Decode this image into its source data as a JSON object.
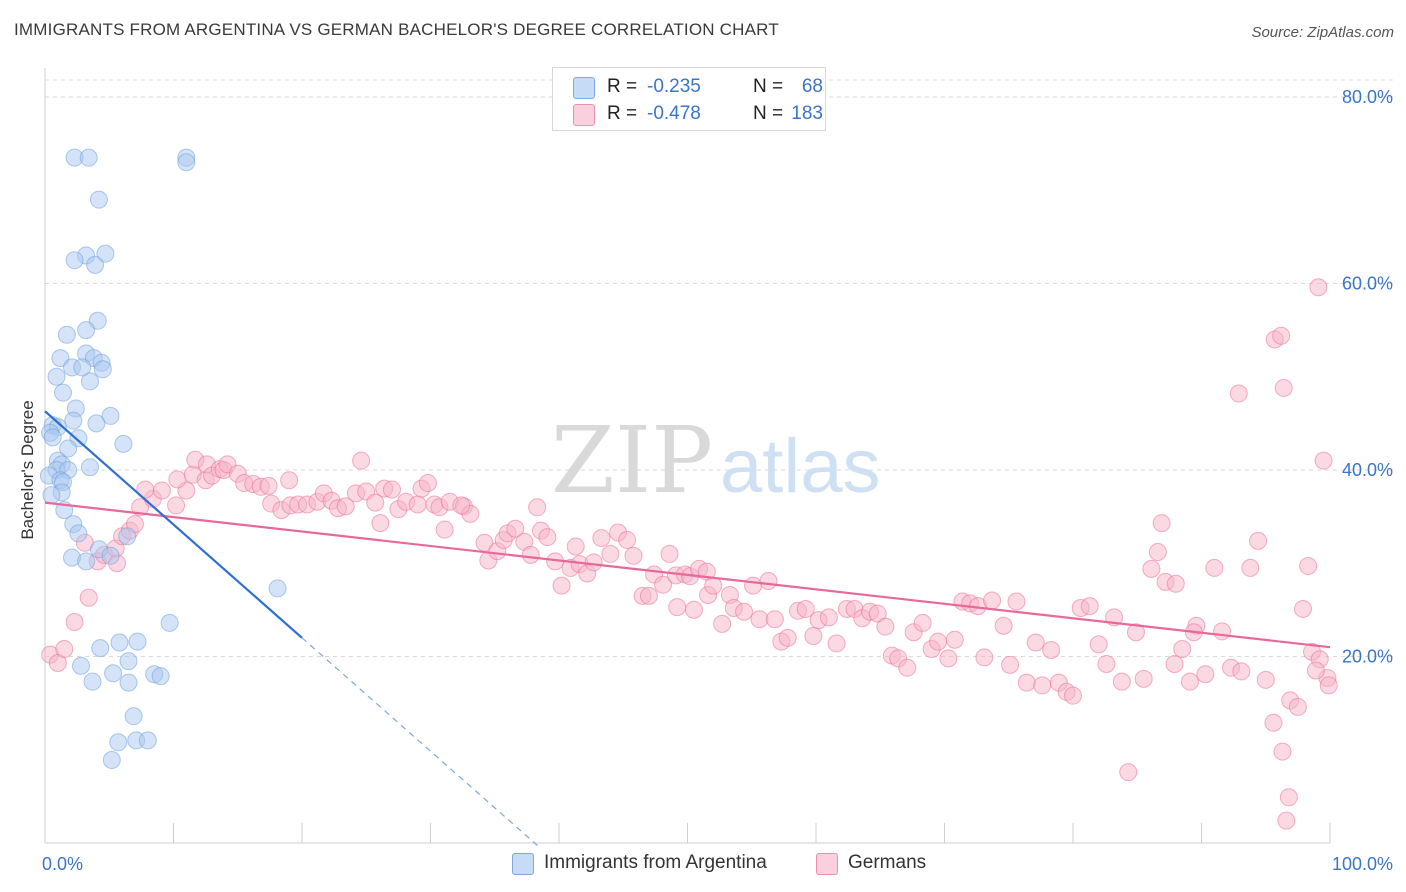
{
  "title": "IMMIGRANTS FROM ARGENTINA VS GERMAN BACHELOR'S DEGREE CORRELATION CHART",
  "source": "Source: ZipAtlas.com",
  "watermark": {
    "zip": "ZIP",
    "atlas": "atlas"
  },
  "legend": {
    "items": [
      {
        "r_label": "R =",
        "r_value": "-0.235",
        "n_label": "N =",
        "n_value": "68",
        "color": "#a9c8ef"
      },
      {
        "r_label": "R =",
        "r_value": "-0.478",
        "n_label": "N =",
        "n_value": "183",
        "color": "#f6b3c8"
      }
    ]
  },
  "bottom_legend": [
    {
      "label": "Immigrants from Argentina",
      "color": "#a9c8ef"
    },
    {
      "label": "Germans",
      "color": "#f6b3c8"
    }
  ],
  "chart_data": {
    "type": "scatter",
    "title": "IMMIGRANTS FROM ARGENTINA VS GERMAN BACHELOR'S DEGREE CORRELATION CHART",
    "xlabel": "",
    "ylabel": "Bachelor's Degree",
    "xlim": [
      0,
      100
    ],
    "ylim": [
      0,
      83
    ],
    "x_tick_labels": [
      "0.0%",
      "100.0%"
    ],
    "y_ticks": [
      20,
      40,
      60,
      80
    ],
    "y_tick_labels": [
      "20.0%",
      "40.0%",
      "60.0%",
      "80.0%"
    ],
    "grid": true,
    "legend_position": "top-center",
    "series": [
      {
        "name": "Immigrants from Argentina",
        "color": "#6fa0de",
        "fill": "#a9c8ef",
        "trend": {
          "x0": 0,
          "y0": 46.3,
          "x1": 20,
          "y1": 22.0,
          "dashed_to_x": 38.5
        },
        "points": [
          [
            2.3,
            73.5
          ],
          [
            3.4,
            73.5
          ],
          [
            11,
            73.5
          ],
          [
            11,
            73
          ],
          [
            4.2,
            69
          ],
          [
            3.2,
            63
          ],
          [
            4.7,
            63.2
          ],
          [
            2.3,
            62.5
          ],
          [
            3.9,
            62
          ],
          [
            4.1,
            56
          ],
          [
            3.2,
            55
          ],
          [
            1.7,
            54.5
          ],
          [
            3.2,
            52.5
          ],
          [
            3.8,
            52
          ],
          [
            1.2,
            52
          ],
          [
            4.4,
            51.5
          ],
          [
            2.1,
            51
          ],
          [
            2.9,
            51
          ],
          [
            4.5,
            50.8
          ],
          [
            0.9,
            50
          ],
          [
            3.5,
            49.5
          ],
          [
            1.4,
            48.3
          ],
          [
            2.4,
            46.6
          ],
          [
            5.1,
            45.8
          ],
          [
            2.2,
            45.3
          ],
          [
            4.0,
            45.0
          ],
          [
            0.6,
            44.8
          ],
          [
            1.0,
            44.6
          ],
          [
            0.4,
            44.0
          ],
          [
            0.6,
            43.5
          ],
          [
            2.6,
            43.4
          ],
          [
            6.1,
            42.8
          ],
          [
            1.8,
            42.3
          ],
          [
            1.0,
            41.0
          ],
          [
            1.3,
            40.6
          ],
          [
            3.5,
            40.3
          ],
          [
            0.9,
            40.0
          ],
          [
            1.8,
            40.0
          ],
          [
            0.3,
            39.4
          ],
          [
            1.2,
            38.9
          ],
          [
            1.4,
            38.7
          ],
          [
            1.3,
            37.6
          ],
          [
            0.5,
            37.3
          ],
          [
            1.5,
            35.7
          ],
          [
            2.2,
            34.2
          ],
          [
            2.6,
            33.2
          ],
          [
            6.4,
            32.9
          ],
          [
            4.2,
            31.5
          ],
          [
            5.1,
            30.8
          ],
          [
            2.1,
            30.6
          ],
          [
            3.2,
            30.2
          ],
          [
            18.1,
            27.3
          ],
          [
            9.7,
            23.6
          ],
          [
            7.2,
            21.6
          ],
          [
            5.8,
            21.5
          ],
          [
            4.3,
            20.9
          ],
          [
            8.5,
            18.1
          ],
          [
            9.0,
            17.9
          ],
          [
            5.3,
            18.2
          ],
          [
            3.7,
            17.3
          ],
          [
            6.5,
            17.2
          ],
          [
            6.9,
            13.6
          ],
          [
            7.1,
            11.0
          ],
          [
            5.7,
            10.8
          ],
          [
            8.0,
            11.0
          ],
          [
            5.2,
            8.9
          ],
          [
            6.5,
            19.5
          ],
          [
            2.8,
            19.0
          ]
        ]
      },
      {
        "name": "Germans",
        "color": "#ee6f98",
        "fill": "#f6b3c8",
        "trend": {
          "x0": 0,
          "y0": 36.5,
          "x1": 100,
          "y1": 21.0
        },
        "points": [
          [
            0.4,
            20.2
          ],
          [
            1.0,
            19.3
          ],
          [
            1.5,
            20.8
          ],
          [
            2.3,
            23.7
          ],
          [
            3.4,
            26.3
          ],
          [
            4.1,
            30.2
          ],
          [
            5.6,
            30.0
          ],
          [
            4.6,
            30.9
          ],
          [
            5.5,
            31.6
          ],
          [
            3.1,
            32.2
          ],
          [
            6.0,
            32.9
          ],
          [
            6.6,
            33.5
          ],
          [
            7.0,
            34.2
          ],
          [
            7.4,
            36.0
          ],
          [
            8.4,
            36.9
          ],
          [
            7.8,
            37.9
          ],
          [
            9.1,
            37.8
          ],
          [
            10.2,
            36.2
          ],
          [
            11.0,
            37.8
          ],
          [
            10.3,
            39.0
          ],
          [
            11.5,
            39.5
          ],
          [
            11.7,
            41.1
          ],
          [
            12.5,
            38.9
          ],
          [
            12.6,
            40.6
          ],
          [
            13.0,
            39.4
          ],
          [
            13.6,
            40.1
          ],
          [
            13.9,
            40.0
          ],
          [
            14.2,
            40.6
          ],
          [
            15.0,
            39.6
          ],
          [
            15.5,
            38.6
          ],
          [
            16.2,
            38.5
          ],
          [
            16.8,
            38.2
          ],
          [
            17.4,
            38.3
          ],
          [
            17.6,
            36.4
          ],
          [
            18.4,
            35.7
          ],
          [
            19.0,
            38.9
          ],
          [
            19.1,
            36.2
          ],
          [
            19.7,
            36.3
          ],
          [
            20.4,
            36.3
          ],
          [
            21.2,
            36.6
          ],
          [
            21.7,
            37.5
          ],
          [
            22.3,
            36.7
          ],
          [
            22.8,
            35.9
          ],
          [
            23.4,
            36.1
          ],
          [
            24.2,
            37.5
          ],
          [
            24.6,
            41.0
          ],
          [
            25.0,
            37.7
          ],
          [
            25.7,
            36.5
          ],
          [
            26.4,
            38.0
          ],
          [
            27.0,
            37.9
          ],
          [
            26.1,
            34.3
          ],
          [
            27.5,
            35.8
          ],
          [
            28.1,
            36.6
          ],
          [
            29.0,
            36.3
          ],
          [
            29.3,
            38.0
          ],
          [
            29.8,
            38.6
          ],
          [
            30.3,
            36.3
          ],
          [
            30.7,
            36.0
          ],
          [
            31.1,
            33.6
          ],
          [
            31.5,
            36.6
          ],
          [
            32.6,
            36.1
          ],
          [
            33.1,
            35.3
          ],
          [
            32.4,
            36.2
          ],
          [
            34.2,
            32.2
          ],
          [
            34.5,
            30.3
          ],
          [
            35.2,
            31.3
          ],
          [
            35.7,
            32.5
          ],
          [
            36.0,
            33.2
          ],
          [
            36.6,
            33.7
          ],
          [
            37.3,
            32.3
          ],
          [
            37.8,
            30.9
          ],
          [
            38.3,
            36.0
          ],
          [
            38.6,
            33.5
          ],
          [
            39.1,
            32.8
          ],
          [
            39.7,
            30.2
          ],
          [
            40.2,
            27.6
          ],
          [
            40.9,
            29.5
          ],
          [
            41.3,
            31.8
          ],
          [
            41.6,
            29.9
          ],
          [
            42.2,
            28.9
          ],
          [
            42.7,
            30.1
          ],
          [
            43.3,
            32.7
          ],
          [
            44.0,
            31.0
          ],
          [
            44.6,
            33.3
          ],
          [
            45.3,
            32.5
          ],
          [
            45.8,
            30.8
          ],
          [
            46.5,
            26.5
          ],
          [
            47.0,
            26.5
          ],
          [
            47.4,
            28.8
          ],
          [
            48.1,
            27.7
          ],
          [
            48.6,
            31.0
          ],
          [
            49.1,
            28.7
          ],
          [
            49.8,
            28.8
          ],
          [
            50.2,
            28.6
          ],
          [
            50.9,
            29.4
          ],
          [
            51.5,
            29.1
          ],
          [
            49.2,
            25.3
          ],
          [
            50.5,
            25.0
          ],
          [
            51.6,
            26.6
          ],
          [
            52.0,
            27.6
          ],
          [
            52.7,
            23.5
          ],
          [
            53.3,
            26.6
          ],
          [
            53.6,
            25.2
          ],
          [
            54.4,
            24.8
          ],
          [
            55.1,
            27.6
          ],
          [
            55.6,
            24.0
          ],
          [
            56.3,
            28.1
          ],
          [
            56.8,
            24.0
          ],
          [
            57.3,
            21.6
          ],
          [
            57.8,
            22.0
          ],
          [
            58.6,
            24.9
          ],
          [
            59.2,
            25.1
          ],
          [
            59.8,
            22.2
          ],
          [
            60.2,
            23.9
          ],
          [
            61.0,
            24.2
          ],
          [
            61.6,
            21.4
          ],
          [
            62.4,
            25.1
          ],
          [
            63.0,
            25.1
          ],
          [
            63.6,
            24.1
          ],
          [
            64.2,
            24.8
          ],
          [
            64.8,
            24.6
          ],
          [
            65.4,
            23.2
          ],
          [
            65.9,
            20.1
          ],
          [
            66.4,
            19.8
          ],
          [
            67.1,
            18.8
          ],
          [
            67.6,
            22.6
          ],
          [
            68.3,
            23.6
          ],
          [
            69.0,
            20.8
          ],
          [
            69.5,
            21.6
          ],
          [
            70.3,
            19.8
          ],
          [
            70.8,
            21.8
          ],
          [
            71.4,
            25.9
          ],
          [
            72.0,
            25.7
          ],
          [
            72.6,
            25.4
          ],
          [
            73.1,
            19.9
          ],
          [
            73.7,
            26.0
          ],
          [
            74.6,
            23.3
          ],
          [
            75.1,
            19.1
          ],
          [
            75.6,
            25.9
          ],
          [
            76.4,
            17.2
          ],
          [
            77.1,
            21.5
          ],
          [
            77.6,
            16.9
          ],
          [
            78.3,
            20.7
          ],
          [
            78.9,
            17.2
          ],
          [
            79.5,
            16.2
          ],
          [
            80.0,
            15.8
          ],
          [
            80.6,
            25.2
          ],
          [
            81.3,
            25.4
          ],
          [
            82.0,
            21.3
          ],
          [
            82.6,
            19.2
          ],
          [
            83.2,
            24.2
          ],
          [
            83.8,
            17.3
          ],
          [
            84.3,
            7.6
          ],
          [
            84.9,
            22.6
          ],
          [
            85.5,
            17.6
          ],
          [
            86.1,
            29.4
          ],
          [
            86.6,
            31.2
          ],
          [
            87.2,
            28.0
          ],
          [
            87.9,
            19.2
          ],
          [
            88.5,
            20.8
          ],
          [
            89.1,
            17.3
          ],
          [
            89.6,
            23.3
          ],
          [
            86.9,
            34.3
          ],
          [
            88.0,
            27.8
          ],
          [
            89.4,
            22.6
          ],
          [
            90.3,
            18.1
          ],
          [
            91.0,
            29.5
          ],
          [
            91.6,
            22.7
          ],
          [
            92.3,
            18.8
          ],
          [
            93.1,
            18.4
          ],
          [
            93.8,
            29.5
          ],
          [
            94.4,
            32.4
          ],
          [
            95.0,
            17.5
          ],
          [
            95.6,
            12.9
          ],
          [
            96.3,
            9.8
          ],
          [
            96.9,
            15.3
          ],
          [
            97.5,
            14.6
          ],
          [
            97.9,
            25.1
          ],
          [
            98.6,
            20.5
          ],
          [
            98.3,
            29.7
          ],
          [
            99.2,
            19.7
          ],
          [
            99.8,
            17.7
          ],
          [
            92.9,
            48.2
          ],
          [
            95.7,
            54.0
          ],
          [
            96.2,
            54.4
          ],
          [
            96.4,
            48.8
          ],
          [
            99.1,
            59.6
          ],
          [
            99.5,
            41.0
          ],
          [
            98.9,
            18.5
          ],
          [
            99.9,
            16.9
          ],
          [
            96.6,
            2.4
          ],
          [
            96.8,
            4.9
          ]
        ]
      }
    ]
  }
}
